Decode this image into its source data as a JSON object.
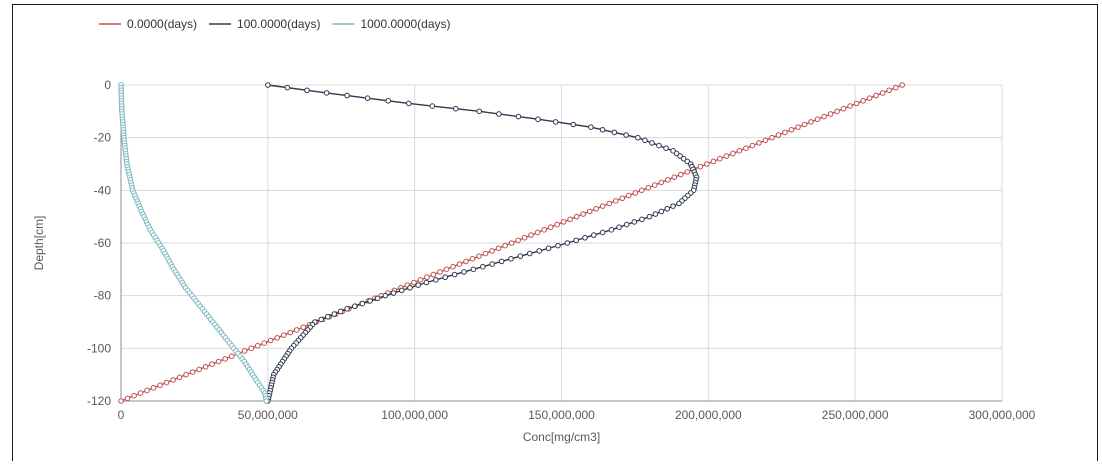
{
  "chart_data": {
    "type": "scatter",
    "title": "",
    "xlabel": "Conc[mg/cm3]",
    "ylabel": "Depth[cm]",
    "xlim": [
      0,
      300000000
    ],
    "ylim": [
      -120,
      0
    ],
    "x_ticks": [
      "0",
      "50,000,000",
      "100,000,000",
      "150,000,000",
      "200,000,000",
      "250,000,000",
      "300,000,000"
    ],
    "y_ticks": [
      "0",
      "-20",
      "-40",
      "-60",
      "-80",
      "-100",
      "-120"
    ],
    "grid": true,
    "legend_position": "top-left",
    "series": [
      {
        "name": "0.0000(days)",
        "color": "#c0504d",
        "marker": "circle",
        "x": [
          266000000,
          0
        ],
        "y": [
          0,
          -120
        ],
        "n_points": 121
      },
      {
        "name": "100.0000(days)",
        "color": "#2e3b4e",
        "marker": "circle",
        "x": [
          50000000,
          70000000,
          98000000,
          122000000,
          142000000,
          160000000,
          176000000,
          188000000,
          194000000,
          196000000,
          195000000,
          190000000,
          180000000,
          167000000,
          152000000,
          136000000,
          120000000,
          104000000,
          90000000,
          77000000,
          66000000,
          58000000,
          52000000,
          50000000
        ],
        "y": [
          0,
          -3,
          -7,
          -10,
          -13,
          -16,
          -20,
          -25,
          -30,
          -35,
          -40,
          -45,
          -50,
          -55,
          -60,
          -65,
          -70,
          -75,
          -80,
          -85,
          -90,
          -100,
          -110,
          -120
        ]
      },
      {
        "name": "1000.0000(days)",
        "color": "#7ab8bd",
        "marker": "circle",
        "x": [
          0,
          300000,
          1000000,
          2000000,
          4000000,
          7000000,
          10000000,
          14000000,
          18000000,
          22000000,
          27000000,
          32000000,
          37000000,
          42000000,
          46000000,
          49000000,
          49500000
        ],
        "y": [
          0,
          -10,
          -20,
          -30,
          -40,
          -48,
          -55,
          -62,
          -70,
          -77,
          -84,
          -91,
          -98,
          -105,
          -112,
          -117,
          -120
        ]
      }
    ]
  }
}
